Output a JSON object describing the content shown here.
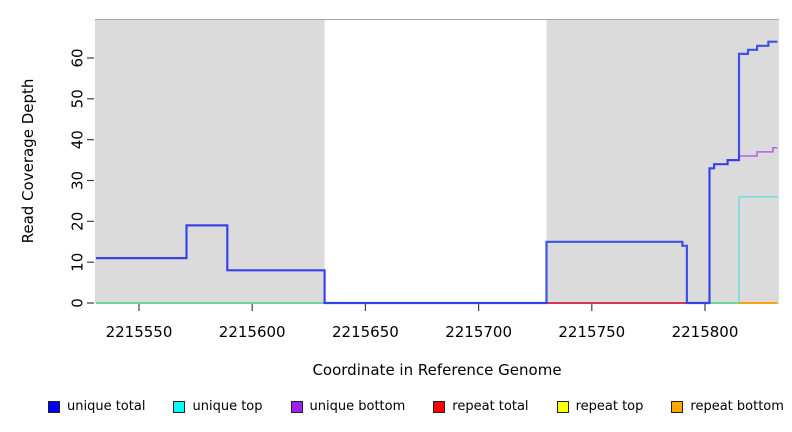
{
  "chart_data": {
    "type": "line",
    "title": "",
    "xlabel": "Coordinate in Reference Genome",
    "ylabel": "Read Coverage Depth",
    "xlim": [
      2215531,
      2215833
    ],
    "ylim": [
      0,
      70
    ],
    "x_ticks": [
      2215550,
      2215600,
      2215650,
      2215700,
      2215750,
      2215800
    ],
    "y_ticks": [
      0,
      10,
      20,
      30,
      40,
      50,
      60
    ],
    "grid": false,
    "legend_position": "bottom",
    "shaded_color": "#DBDBDB",
    "shaded_edge_color": "#A8A8A8",
    "shaded_regions": [
      {
        "from": 2215530,
        "to": 2215632
      },
      {
        "from": 2215730,
        "to": 2215834
      }
    ],
    "series": [
      {
        "name": "repeat top",
        "color": "#FFFF00",
        "render_color": "#8CC83C",
        "width": 1.4,
        "opacity": 1,
        "steps": [
          [
            2215531,
            0
          ],
          [
            2215832,
            0
          ]
        ]
      },
      {
        "name": "unique top",
        "color": "#00FFFF",
        "render_color": "#30E0E0",
        "width": 1.6,
        "opacity": 0.6,
        "steps": [
          [
            2215531,
            0
          ],
          [
            2215815,
            26
          ],
          [
            2215832,
            26
          ]
        ]
      },
      {
        "name": "unique bottom",
        "color": "#A020F0",
        "render_color": "#A020F0",
        "width": 1.5,
        "opacity": 0.65,
        "steps": [
          [
            2215531,
            11
          ],
          [
            2215571,
            19
          ],
          [
            2215589,
            8
          ],
          [
            2215632,
            0
          ],
          [
            2215802,
            33
          ],
          [
            2215804,
            34
          ],
          [
            2215810,
            35
          ],
          [
            2215815,
            36
          ],
          [
            2215823,
            37
          ],
          [
            2215830,
            38
          ],
          [
            2215832,
            38
          ]
        ]
      },
      {
        "name": "repeat total",
        "color": "#FF0000",
        "render_color": "#E02840",
        "width": 1.7,
        "opacity": 1,
        "steps": [
          [
            2215730,
            0
          ],
          [
            2215792,
            0
          ]
        ]
      },
      {
        "name": "repeat bottom",
        "color": "#FFA500",
        "render_color": "#FF9A00",
        "width": 1.8,
        "opacity": 1,
        "steps": [
          [
            2215815,
            0
          ],
          [
            2215832,
            0
          ]
        ]
      },
      {
        "name": "unique total",
        "color": "#0000FF",
        "render_color": "#2238EC",
        "width": 2.2,
        "opacity": 0.85,
        "steps": [
          [
            2215531,
            11
          ],
          [
            2215571,
            19
          ],
          [
            2215589,
            8
          ],
          [
            2215632,
            0
          ],
          [
            2215730,
            15
          ],
          [
            2215790,
            14
          ],
          [
            2215792,
            0
          ],
          [
            2215802,
            33
          ],
          [
            2215804,
            34
          ],
          [
            2215810,
            35
          ],
          [
            2215815,
            61
          ],
          [
            2215819,
            62
          ],
          [
            2215823,
            63
          ],
          [
            2215828,
            64
          ],
          [
            2215832,
            64
          ]
        ]
      }
    ]
  },
  "legend": {
    "items": [
      {
        "label": "unique total",
        "color": "#0000FF"
      },
      {
        "label": "unique top",
        "color": "#00FFFF"
      },
      {
        "label": "unique bottom",
        "color": "#A020F0"
      },
      {
        "label": "repeat total",
        "color": "#FF0000"
      },
      {
        "label": "repeat top",
        "color": "#FFFF00"
      },
      {
        "label": "repeat bottom",
        "color": "#FFA500"
      }
    ]
  },
  "axes_style": {
    "tick_color": "#404040",
    "label_color": "#000000",
    "tick_font_size": 15,
    "legend_font_size": 13
  }
}
